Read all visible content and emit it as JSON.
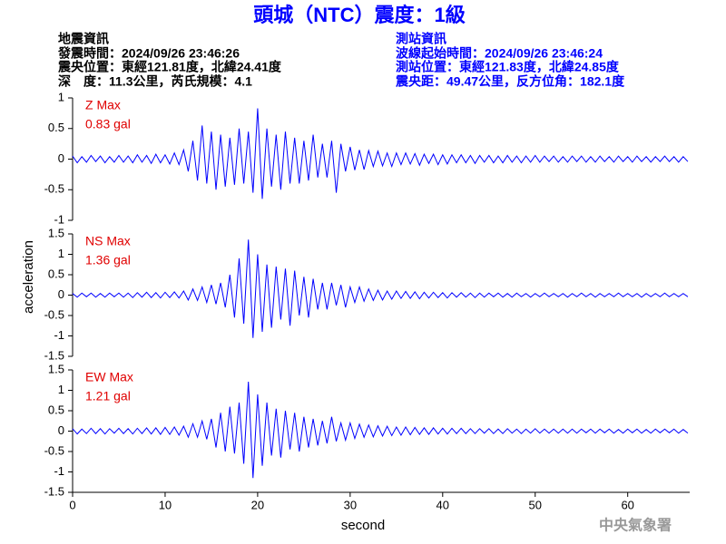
{
  "header": {
    "title": "頭城（NTC）震度：1級",
    "event_info": [
      "地震資訊",
      "發震時間：2024/09/26 23:46:26",
      "震央位置：東經121.81度，北緯24.41度",
      "深　度：11.3公里，芮氏規模：4.1"
    ],
    "station_info": [
      "測站資訊",
      "波線起始時間：2024/09/26 23:46:24",
      "測站位置：東經121.83度，北緯24.85度",
      "震央距：49.47公里，反方位角：182.1度"
    ]
  },
  "footer": "中央氣象署",
  "chart_data": [
    {
      "type": "line",
      "annotations": [
        "Z Max",
        "0.83 gal"
      ],
      "annotation_color": "#e00000",
      "color": "#0000ff",
      "xlim": [
        0,
        66.7
      ],
      "ylim": [
        -1,
        1
      ],
      "yticks": [
        -1,
        -0.5,
        0,
        0.5,
        1
      ],
      "x": [
        0,
        0.5,
        1,
        1.5,
        2,
        2.5,
        3,
        3.5,
        4,
        4.5,
        5,
        5.5,
        6,
        6.5,
        7,
        7.5,
        8,
        8.5,
        9,
        9.5,
        10,
        10.5,
        11,
        11.5,
        12,
        12.5,
        13,
        13.5,
        14,
        14.5,
        15,
        15.5,
        16,
        16.5,
        17,
        17.5,
        18,
        18.5,
        19,
        19.5,
        20,
        20.5,
        21,
        21.5,
        22,
        22.5,
        23,
        23.5,
        24,
        24.5,
        25,
        25.5,
        26,
        26.5,
        27,
        27.5,
        28,
        28.5,
        29,
        29.5,
        30,
        30.5,
        31,
        31.5,
        32,
        32.5,
        33,
        33.5,
        34,
        34.5,
        35,
        35.5,
        36,
        36.5,
        37,
        37.5,
        38,
        38.5,
        39,
        39.5,
        40,
        40.5,
        41,
        41.5,
        42,
        42.5,
        43,
        43.5,
        44,
        44.5,
        45,
        45.5,
        46,
        46.5,
        47,
        47.5,
        48,
        48.5,
        49,
        49.5,
        50,
        50.5,
        51,
        51.5,
        52,
        52.5,
        53,
        53.5,
        54,
        54.5,
        55,
        55.5,
        56,
        56.5,
        57,
        57.5,
        58,
        58.5,
        59,
        59.5,
        60,
        60.5,
        61,
        61.5,
        62,
        62.5,
        63,
        63.5,
        64,
        64.5,
        65,
        65.5,
        66,
        66.5
      ],
      "values": [
        0.05,
        -0.06,
        0.04,
        -0.05,
        0.06,
        -0.04,
        0.05,
        -0.06,
        0.04,
        -0.05,
        0.06,
        -0.05,
        0.05,
        -0.06,
        0.07,
        -0.05,
        0.06,
        -0.07,
        0.08,
        -0.06,
        0.07,
        -0.08,
        0.1,
        -0.09,
        0.15,
        -0.2,
        0.3,
        -0.35,
        0.55,
        -0.4,
        0.45,
        -0.5,
        0.4,
        -0.45,
        0.35,
        -0.42,
        0.5,
        -0.4,
        0.45,
        -0.55,
        0.83,
        -0.65,
        0.5,
        -0.45,
        0.4,
        -0.5,
        0.45,
        -0.4,
        0.35,
        -0.4,
        0.3,
        -0.35,
        0.4,
        -0.3,
        0.25,
        -0.3,
        0.3,
        -0.55,
        0.25,
        -0.2,
        0.2,
        -0.18,
        0.15,
        -0.17,
        0.14,
        -0.12,
        0.13,
        -0.11,
        0.1,
        -0.12,
        0.1,
        -0.09,
        0.1,
        -0.08,
        0.09,
        -0.1,
        0.08,
        -0.07,
        0.08,
        -0.09,
        0.07,
        -0.08,
        0.07,
        -0.06,
        0.07,
        -0.06,
        0.06,
        -0.07,
        0.06,
        -0.05,
        0.06,
        -0.06,
        0.05,
        -0.06,
        0.06,
        -0.05,
        0.05,
        -0.06,
        0.05,
        -0.05,
        0.06,
        -0.05,
        0.05,
        -0.04,
        0.05,
        -0.05,
        0.04,
        -0.05,
        0.05,
        -0.04,
        0.05,
        -0.05,
        0.04,
        -0.05,
        0.05,
        -0.04,
        0.04,
        -0.05,
        0.05,
        -0.04,
        0.04,
        -0.05,
        0.05,
        -0.04,
        0.04,
        -0.05,
        0.04,
        -0.04,
        0.05,
        -0.04,
        0.04,
        -0.05,
        0.04,
        -0.04
      ]
    },
    {
      "type": "line",
      "annotations": [
        "NS Max",
        "1.36 gal"
      ],
      "annotation_color": "#e00000",
      "color": "#0000ff",
      "ylabel": "acceleration",
      "xlim": [
        0,
        66.7
      ],
      "ylim": [
        -1.5,
        1.5
      ],
      "yticks": [
        -1.5,
        -1,
        -0.5,
        0,
        0.5,
        1,
        1.5
      ],
      "x": [
        0,
        0.5,
        1,
        1.5,
        2,
        2.5,
        3,
        3.5,
        4,
        4.5,
        5,
        5.5,
        6,
        6.5,
        7,
        7.5,
        8,
        8.5,
        9,
        9.5,
        10,
        10.5,
        11,
        11.5,
        12,
        12.5,
        13,
        13.5,
        14,
        14.5,
        15,
        15.5,
        16,
        16.5,
        17,
        17.5,
        18,
        18.5,
        19,
        19.5,
        20,
        20.5,
        21,
        21.5,
        22,
        22.5,
        23,
        23.5,
        24,
        24.5,
        25,
        25.5,
        26,
        26.5,
        27,
        27.5,
        28,
        28.5,
        29,
        29.5,
        30,
        30.5,
        31,
        31.5,
        32,
        32.5,
        33,
        33.5,
        34,
        34.5,
        35,
        35.5,
        36,
        36.5,
        37,
        37.5,
        38,
        38.5,
        39,
        39.5,
        40,
        40.5,
        41,
        41.5,
        42,
        42.5,
        43,
        43.5,
        44,
        44.5,
        45,
        45.5,
        46,
        46.5,
        47,
        47.5,
        48,
        48.5,
        49,
        49.5,
        50,
        50.5,
        51,
        51.5,
        52,
        52.5,
        53,
        53.5,
        54,
        54.5,
        55,
        55.5,
        56,
        56.5,
        57,
        57.5,
        58,
        58.5,
        59,
        59.5,
        60,
        60.5,
        61,
        61.5,
        62,
        62.5,
        63,
        63.5,
        64,
        64.5,
        65,
        65.5,
        66,
        66.5
      ],
      "values": [
        0.04,
        -0.05,
        0.05,
        -0.04,
        0.05,
        -0.05,
        0.04,
        -0.05,
        0.05,
        -0.04,
        0.05,
        -0.05,
        0.05,
        -0.06,
        0.06,
        -0.05,
        0.07,
        -0.06,
        0.06,
        -0.07,
        0.07,
        -0.06,
        0.08,
        -0.07,
        0.1,
        -0.12,
        0.15,
        -0.13,
        0.2,
        -0.18,
        0.25,
        -0.22,
        0.3,
        -0.3,
        0.5,
        -0.55,
        0.9,
        -0.7,
        1.36,
        -1.05,
        1.0,
        -0.9,
        0.75,
        -0.8,
        0.7,
        -0.6,
        0.65,
        -0.75,
        0.6,
        -0.5,
        0.45,
        -0.55,
        0.4,
        -0.35,
        0.3,
        -0.35,
        0.3,
        -0.25,
        0.25,
        -0.3,
        0.2,
        -0.18,
        0.2,
        -0.15,
        0.15,
        -0.13,
        0.12,
        -0.12,
        0.1,
        -0.1,
        0.1,
        -0.08,
        0.09,
        -0.08,
        0.08,
        -0.09,
        0.07,
        -0.07,
        0.07,
        -0.06,
        0.06,
        -0.07,
        0.06,
        -0.05,
        0.06,
        -0.05,
        0.05,
        -0.06,
        0.05,
        -0.05,
        0.05,
        -0.04,
        0.05,
        -0.05,
        0.04,
        -0.05,
        0.05,
        -0.04,
        0.04,
        -0.05,
        0.04,
        -0.04,
        0.05,
        -0.04,
        0.04,
        -0.04,
        0.04,
        -0.05,
        0.04,
        -0.04,
        0.05,
        -0.04,
        0.04,
        -0.05,
        0.04,
        -0.04,
        0.04,
        -0.04,
        0.05,
        -0.04,
        0.04,
        -0.04,
        0.04,
        -0.05,
        0.04,
        -0.04,
        0.04,
        -0.04,
        0.05,
        -0.04,
        0.04,
        -0.04,
        0.04,
        -0.04
      ]
    },
    {
      "type": "line",
      "annotations": [
        "EW Max",
        "1.21 gal"
      ],
      "annotation_color": "#e00000",
      "color": "#0000ff",
      "xlabel": "second",
      "xlim": [
        0,
        66.7
      ],
      "xticks": [
        0,
        10,
        20,
        30,
        40,
        50,
        60
      ],
      "ylim": [
        -1.5,
        1.5
      ],
      "yticks": [
        -1.5,
        -1,
        -0.5,
        0,
        0.5,
        1,
        1.5
      ],
      "x": [
        0,
        0.5,
        1,
        1.5,
        2,
        2.5,
        3,
        3.5,
        4,
        4.5,
        5,
        5.5,
        6,
        6.5,
        7,
        7.5,
        8,
        8.5,
        9,
        9.5,
        10,
        10.5,
        11,
        11.5,
        12,
        12.5,
        13,
        13.5,
        14,
        14.5,
        15,
        15.5,
        16,
        16.5,
        17,
        17.5,
        18,
        18.5,
        19,
        19.5,
        20,
        20.5,
        21,
        21.5,
        22,
        22.5,
        23,
        23.5,
        24,
        24.5,
        25,
        25.5,
        26,
        26.5,
        27,
        27.5,
        28,
        28.5,
        29,
        29.5,
        30,
        30.5,
        31,
        31.5,
        32,
        32.5,
        33,
        33.5,
        34,
        34.5,
        35,
        35.5,
        36,
        36.5,
        37,
        37.5,
        38,
        38.5,
        39,
        39.5,
        40,
        40.5,
        41,
        41.5,
        42,
        42.5,
        43,
        43.5,
        44,
        44.5,
        45,
        45.5,
        46,
        46.5,
        47,
        47.5,
        48,
        48.5,
        49,
        49.5,
        50,
        50.5,
        51,
        51.5,
        52,
        52.5,
        53,
        53.5,
        54,
        54.5,
        55,
        55.5,
        56,
        56.5,
        57,
        57.5,
        58,
        58.5,
        59,
        59.5,
        60,
        60.5,
        61,
        61.5,
        62,
        62.5,
        63,
        63.5,
        64,
        64.5,
        65,
        65.5,
        66,
        66.5
      ],
      "values": [
        0.06,
        -0.07,
        0.05,
        -0.06,
        0.07,
        -0.06,
        0.06,
        -0.07,
        0.06,
        -0.05,
        0.07,
        -0.06,
        0.06,
        -0.07,
        0.07,
        -0.06,
        0.08,
        -0.07,
        0.08,
        -0.08,
        0.09,
        -0.08,
        0.1,
        -0.1,
        0.12,
        -0.15,
        0.18,
        -0.15,
        0.25,
        -0.2,
        0.3,
        -0.4,
        0.45,
        -0.5,
        0.6,
        -0.55,
        0.7,
        -0.8,
        1.21,
        -1.15,
        0.9,
        -0.85,
        0.7,
        -0.6,
        0.55,
        -0.65,
        0.5,
        -0.45,
        0.45,
        -0.5,
        0.35,
        -0.4,
        0.3,
        -0.35,
        0.25,
        -0.3,
        0.35,
        -0.25,
        0.2,
        -0.22,
        0.2,
        -0.18,
        0.17,
        -0.15,
        0.15,
        -0.14,
        0.13,
        -0.12,
        0.12,
        -0.11,
        0.1,
        -0.1,
        0.1,
        -0.09,
        0.09,
        -0.08,
        0.08,
        -0.08,
        0.08,
        -0.07,
        0.07,
        -0.07,
        0.07,
        -0.06,
        0.07,
        -0.06,
        0.06,
        -0.06,
        0.06,
        -0.05,
        0.06,
        -0.06,
        0.05,
        -0.06,
        0.06,
        -0.05,
        0.05,
        -0.06,
        0.05,
        -0.05,
        0.06,
        -0.05,
        0.05,
        -0.05,
        0.05,
        -0.05,
        0.05,
        -0.05,
        0.05,
        -0.05,
        0.05,
        -0.04,
        0.05,
        -0.05,
        0.05,
        -0.04,
        0.05,
        -0.05,
        0.04,
        -0.05,
        0.05,
        -0.04,
        0.05,
        -0.05,
        0.04,
        -0.05,
        0.05,
        -0.04,
        0.05,
        -0.04,
        0.05,
        -0.05,
        0.04,
        -0.05
      ]
    }
  ]
}
